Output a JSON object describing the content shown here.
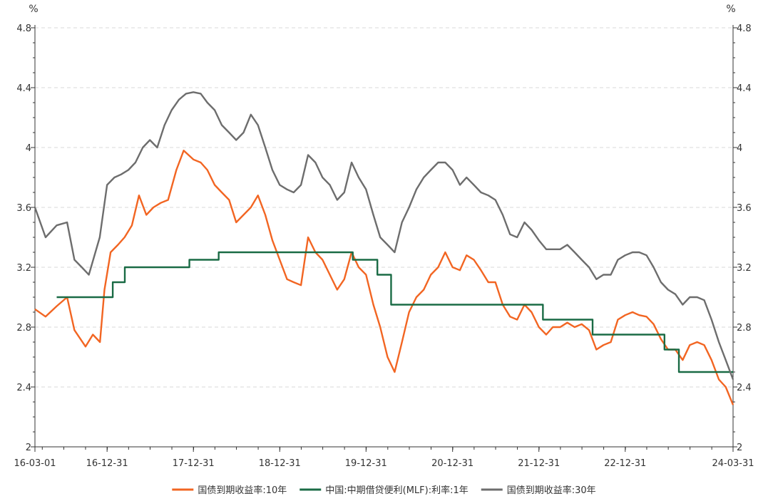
{
  "chart_data": {
    "type": "line",
    "y_unit_left": "%",
    "y_unit_right": "%",
    "ylim": [
      2,
      4.8
    ],
    "y_ticks": [
      "2",
      "2.4",
      "2.8",
      "3.2",
      "3.6",
      "4",
      "4.4",
      "4.8"
    ],
    "x_range": [
      "2016-03-01",
      "2024-03-31"
    ],
    "x_ticks": [
      "16-03-01",
      "16-12-31",
      "17-12-31",
      "18-12-31",
      "19-12-31",
      "20-12-31",
      "21-12-31",
      "22-12-31",
      "24-03-31"
    ],
    "x_tick_dates": [
      "2016-03-01",
      "2016-12-31",
      "2017-12-31",
      "2018-12-31",
      "2019-12-31",
      "2020-12-31",
      "2021-12-31",
      "2022-12-31",
      "2024-03-31"
    ],
    "grid": "horizontal dashed",
    "legend_position": "bottom",
    "series": [
      {
        "name": "国债到期收益率:10年",
        "color": "#f26522",
        "points": [
          [
            "2016-03-01",
            2.92
          ],
          [
            "2016-04-15",
            2.87
          ],
          [
            "2016-06-01",
            2.94
          ],
          [
            "2016-07-15",
            3.0
          ],
          [
            "2016-08-15",
            2.78
          ],
          [
            "2016-10-01",
            2.67
          ],
          [
            "2016-11-01",
            2.75
          ],
          [
            "2016-12-01",
            2.7
          ],
          [
            "2016-12-20",
            3.05
          ],
          [
            "2017-01-15",
            3.3
          ],
          [
            "2017-02-15",
            3.35
          ],
          [
            "2017-03-15",
            3.4
          ],
          [
            "2017-04-15",
            3.48
          ],
          [
            "2017-05-15",
            3.68
          ],
          [
            "2017-06-15",
            3.55
          ],
          [
            "2017-07-15",
            3.6
          ],
          [
            "2017-08-15",
            3.63
          ],
          [
            "2017-09-15",
            3.65
          ],
          [
            "2017-10-20",
            3.85
          ],
          [
            "2017-11-20",
            3.98
          ],
          [
            "2017-12-31",
            3.92
          ],
          [
            "2018-01-31",
            3.9
          ],
          [
            "2018-02-28",
            3.85
          ],
          [
            "2018-03-31",
            3.75
          ],
          [
            "2018-04-30",
            3.7
          ],
          [
            "2018-05-31",
            3.65
          ],
          [
            "2018-06-30",
            3.5
          ],
          [
            "2018-07-31",
            3.55
          ],
          [
            "2018-08-31",
            3.6
          ],
          [
            "2018-09-30",
            3.68
          ],
          [
            "2018-10-31",
            3.55
          ],
          [
            "2018-11-30",
            3.38
          ],
          [
            "2018-12-31",
            3.25
          ],
          [
            "2019-01-31",
            3.12
          ],
          [
            "2019-02-28",
            3.1
          ],
          [
            "2019-03-31",
            3.08
          ],
          [
            "2019-04-30",
            3.4
          ],
          [
            "2019-05-31",
            3.3
          ],
          [
            "2019-06-30",
            3.25
          ],
          [
            "2019-07-31",
            3.15
          ],
          [
            "2019-08-31",
            3.05
          ],
          [
            "2019-09-30",
            3.12
          ],
          [
            "2019-10-31",
            3.3
          ],
          [
            "2019-11-30",
            3.2
          ],
          [
            "2019-12-31",
            3.15
          ],
          [
            "2020-01-31",
            2.95
          ],
          [
            "2020-02-29",
            2.8
          ],
          [
            "2020-03-31",
            2.6
          ],
          [
            "2020-04-30",
            2.5
          ],
          [
            "2020-05-31",
            2.7
          ],
          [
            "2020-06-30",
            2.9
          ],
          [
            "2020-07-31",
            3.0
          ],
          [
            "2020-08-31",
            3.05
          ],
          [
            "2020-09-30",
            3.15
          ],
          [
            "2020-10-31",
            3.2
          ],
          [
            "2020-11-30",
            3.3
          ],
          [
            "2020-12-31",
            3.2
          ],
          [
            "2021-01-31",
            3.18
          ],
          [
            "2021-02-28",
            3.28
          ],
          [
            "2021-03-31",
            3.25
          ],
          [
            "2021-04-30",
            3.18
          ],
          [
            "2021-05-31",
            3.1
          ],
          [
            "2021-06-30",
            3.1
          ],
          [
            "2021-07-31",
            2.95
          ],
          [
            "2021-08-31",
            2.87
          ],
          [
            "2021-09-30",
            2.85
          ],
          [
            "2021-10-31",
            2.95
          ],
          [
            "2021-11-30",
            2.9
          ],
          [
            "2021-12-31",
            2.8
          ],
          [
            "2022-01-31",
            2.75
          ],
          [
            "2022-02-28",
            2.8
          ],
          [
            "2022-03-31",
            2.8
          ],
          [
            "2022-04-30",
            2.83
          ],
          [
            "2022-05-31",
            2.8
          ],
          [
            "2022-06-30",
            2.82
          ],
          [
            "2022-07-31",
            2.78
          ],
          [
            "2022-08-31",
            2.65
          ],
          [
            "2022-09-30",
            2.68
          ],
          [
            "2022-10-31",
            2.7
          ],
          [
            "2022-11-30",
            2.85
          ],
          [
            "2022-12-31",
            2.88
          ],
          [
            "2023-01-31",
            2.9
          ],
          [
            "2023-02-28",
            2.88
          ],
          [
            "2023-03-31",
            2.87
          ],
          [
            "2023-04-30",
            2.82
          ],
          [
            "2023-05-31",
            2.72
          ],
          [
            "2023-06-30",
            2.65
          ],
          [
            "2023-07-31",
            2.65
          ],
          [
            "2023-08-31",
            2.58
          ],
          [
            "2023-09-30",
            2.68
          ],
          [
            "2023-10-31",
            2.7
          ],
          [
            "2023-11-30",
            2.68
          ],
          [
            "2023-12-31",
            2.58
          ],
          [
            "2024-01-31",
            2.45
          ],
          [
            "2024-02-29",
            2.4
          ],
          [
            "2024-03-31",
            2.28
          ]
        ]
      },
      {
        "name": "中国:中期借贷便利(MLF):利率:1年",
        "color": "#1a6b45",
        "points": [
          [
            "2016-06-01",
            3.0
          ],
          [
            "2017-01-24",
            3.0
          ],
          [
            "2017-01-24",
            3.1
          ],
          [
            "2017-03-16",
            3.1
          ],
          [
            "2017-03-16",
            3.2
          ],
          [
            "2017-12-14",
            3.2
          ],
          [
            "2017-12-14",
            3.25
          ],
          [
            "2018-04-17",
            3.25
          ],
          [
            "2018-04-17",
            3.3
          ],
          [
            "2019-11-05",
            3.3
          ],
          [
            "2019-11-05",
            3.25
          ],
          [
            "2020-02-17",
            3.25
          ],
          [
            "2020-02-17",
            3.15
          ],
          [
            "2020-04-15",
            3.15
          ],
          [
            "2020-04-15",
            2.95
          ],
          [
            "2022-01-17",
            2.95
          ],
          [
            "2022-01-17",
            2.85
          ],
          [
            "2022-08-15",
            2.85
          ],
          [
            "2022-08-15",
            2.75
          ],
          [
            "2023-06-15",
            2.75
          ],
          [
            "2023-06-15",
            2.65
          ],
          [
            "2023-08-15",
            2.65
          ],
          [
            "2023-08-15",
            2.5
          ],
          [
            "2024-03-31",
            2.5
          ]
        ]
      },
      {
        "name": "国债到期收益率:30年",
        "color": "#6d6d6d",
        "points": [
          [
            "2016-03-01",
            3.6
          ],
          [
            "2016-04-15",
            3.4
          ],
          [
            "2016-06-01",
            3.48
          ],
          [
            "2016-07-15",
            3.5
          ],
          [
            "2016-08-15",
            3.25
          ],
          [
            "2016-09-15",
            3.2
          ],
          [
            "2016-10-15",
            3.15
          ],
          [
            "2016-11-30",
            3.4
          ],
          [
            "2016-12-31",
            3.75
          ],
          [
            "2017-01-31",
            3.8
          ],
          [
            "2017-02-28",
            3.82
          ],
          [
            "2017-03-31",
            3.85
          ],
          [
            "2017-04-30",
            3.9
          ],
          [
            "2017-05-31",
            4.0
          ],
          [
            "2017-06-30",
            4.05
          ],
          [
            "2017-07-31",
            4.0
          ],
          [
            "2017-08-31",
            4.15
          ],
          [
            "2017-09-30",
            4.25
          ],
          [
            "2017-10-31",
            4.32
          ],
          [
            "2017-11-30",
            4.36
          ],
          [
            "2017-12-31",
            4.37
          ],
          [
            "2018-01-31",
            4.36
          ],
          [
            "2018-02-28",
            4.3
          ],
          [
            "2018-03-31",
            4.25
          ],
          [
            "2018-04-30",
            4.15
          ],
          [
            "2018-05-31",
            4.1
          ],
          [
            "2018-06-30",
            4.05
          ],
          [
            "2018-07-31",
            4.1
          ],
          [
            "2018-08-31",
            4.22
          ],
          [
            "2018-09-30",
            4.15
          ],
          [
            "2018-10-31",
            4.0
          ],
          [
            "2018-11-30",
            3.85
          ],
          [
            "2018-12-31",
            3.75
          ],
          [
            "2019-01-31",
            3.72
          ],
          [
            "2019-02-28",
            3.7
          ],
          [
            "2019-03-31",
            3.75
          ],
          [
            "2019-04-30",
            3.95
          ],
          [
            "2019-05-31",
            3.9
          ],
          [
            "2019-06-30",
            3.8
          ],
          [
            "2019-07-31",
            3.75
          ],
          [
            "2019-08-31",
            3.65
          ],
          [
            "2019-09-30",
            3.7
          ],
          [
            "2019-10-31",
            3.9
          ],
          [
            "2019-11-30",
            3.8
          ],
          [
            "2019-12-31",
            3.72
          ],
          [
            "2020-01-31",
            3.55
          ],
          [
            "2020-02-29",
            3.4
          ],
          [
            "2020-03-31",
            3.35
          ],
          [
            "2020-04-30",
            3.3
          ],
          [
            "2020-05-31",
            3.5
          ],
          [
            "2020-06-30",
            3.6
          ],
          [
            "2020-07-31",
            3.72
          ],
          [
            "2020-08-31",
            3.8
          ],
          [
            "2020-09-30",
            3.85
          ],
          [
            "2020-10-31",
            3.9
          ],
          [
            "2020-11-30",
            3.9
          ],
          [
            "2020-12-31",
            3.85
          ],
          [
            "2021-01-31",
            3.75
          ],
          [
            "2021-02-28",
            3.8
          ],
          [
            "2021-03-31",
            3.75
          ],
          [
            "2021-04-30",
            3.7
          ],
          [
            "2021-05-31",
            3.68
          ],
          [
            "2021-06-30",
            3.65
          ],
          [
            "2021-07-31",
            3.55
          ],
          [
            "2021-08-31",
            3.42
          ],
          [
            "2021-09-30",
            3.4
          ],
          [
            "2021-10-31",
            3.5
          ],
          [
            "2021-11-30",
            3.45
          ],
          [
            "2021-12-31",
            3.38
          ],
          [
            "2022-01-31",
            3.32
          ],
          [
            "2022-02-28",
            3.32
          ],
          [
            "2022-03-31",
            3.32
          ],
          [
            "2022-04-30",
            3.35
          ],
          [
            "2022-05-31",
            3.3
          ],
          [
            "2022-06-30",
            3.25
          ],
          [
            "2022-07-31",
            3.2
          ],
          [
            "2022-08-31",
            3.12
          ],
          [
            "2022-09-30",
            3.15
          ],
          [
            "2022-10-31",
            3.15
          ],
          [
            "2022-11-30",
            3.25
          ],
          [
            "2022-12-31",
            3.28
          ],
          [
            "2023-01-31",
            3.3
          ],
          [
            "2023-02-28",
            3.3
          ],
          [
            "2023-03-31",
            3.28
          ],
          [
            "2023-04-30",
            3.2
          ],
          [
            "2023-05-31",
            3.1
          ],
          [
            "2023-06-30",
            3.05
          ],
          [
            "2023-07-31",
            3.02
          ],
          [
            "2023-08-31",
            2.95
          ],
          [
            "2023-09-30",
            3.0
          ],
          [
            "2023-10-31",
            3.0
          ],
          [
            "2023-11-30",
            2.98
          ],
          [
            "2023-12-31",
            2.85
          ],
          [
            "2024-01-31",
            2.7
          ],
          [
            "2024-02-29",
            2.58
          ],
          [
            "2024-03-31",
            2.45
          ]
        ]
      }
    ]
  }
}
